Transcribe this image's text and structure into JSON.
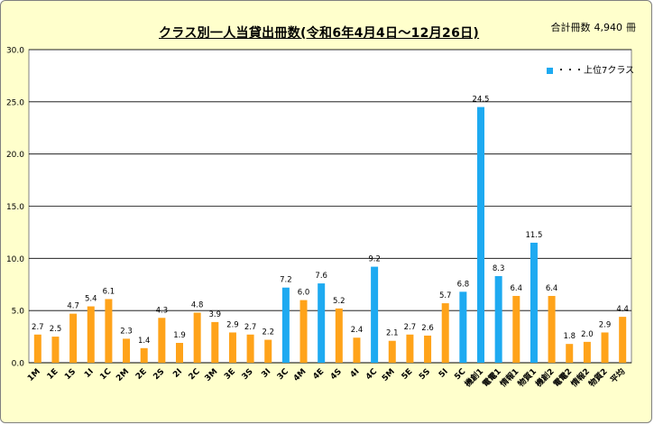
{
  "header": {
    "title": "クラス別一人当貸出冊数(令和6年4月4日～12月26日)",
    "total_label": "合計冊数",
    "total_value": "4,940",
    "total_unit": "冊"
  },
  "legend": {
    "label": "・・・上位7クラス",
    "color": "#1eaaf1"
  },
  "colors": {
    "default_bar": "#ffa31a",
    "top_bar": "#1eaaf1",
    "plot_background": "#ffffff",
    "gridline": "#000000"
  },
  "chart_data": {
    "type": "bar",
    "ylim": [
      0,
      30
    ],
    "yticks": [
      "0.0",
      "5.0",
      "10.0",
      "15.0",
      "20.0",
      "25.0",
      "30.0"
    ],
    "grid": true,
    "legend_position": "top-right",
    "categories": [
      "1M",
      "1E",
      "1S",
      "1I",
      "1C",
      "2M",
      "2E",
      "2S",
      "2I",
      "2C",
      "3M",
      "3E",
      "3S",
      "3I",
      "3C",
      "4M",
      "4E",
      "4S",
      "4I",
      "4C",
      "5M",
      "5E",
      "5S",
      "5I",
      "5C",
      "機創1",
      "電電1",
      "情報1",
      "物質1",
      "機創2",
      "電電2",
      "情報2",
      "物質2",
      "平均"
    ],
    "values": [
      2.7,
      2.5,
      4.7,
      5.4,
      6.1,
      2.3,
      1.4,
      4.3,
      1.9,
      4.8,
      3.9,
      2.9,
      2.7,
      2.2,
      7.2,
      6.0,
      7.6,
      5.2,
      2.4,
      9.2,
      2.1,
      2.7,
      2.6,
      5.7,
      6.8,
      24.5,
      8.3,
      6.4,
      11.5,
      6.4,
      1.8,
      2.0,
      2.9,
      4.4
    ],
    "labels": [
      "2.7",
      "2.5",
      "4.7",
      "5.4",
      "6.1",
      "2.3",
      "1.4",
      "4.3",
      "1.9",
      "4.8",
      "3.9",
      "2.9",
      "2.7",
      "2.2",
      "7.2",
      "6.0",
      "7.6",
      "5.2",
      "2.4",
      "9.2",
      "2.1",
      "2.7",
      "2.6",
      "5.7",
      "6.8",
      "24.5",
      "8.3",
      "6.4",
      "11.5",
      "6.4",
      "1.8",
      "2.0",
      "2.9",
      "4.4"
    ],
    "highlighted": [
      "3C",
      "4E",
      "4C",
      "5C",
      "機創1",
      "電電1",
      "物質1"
    ]
  }
}
